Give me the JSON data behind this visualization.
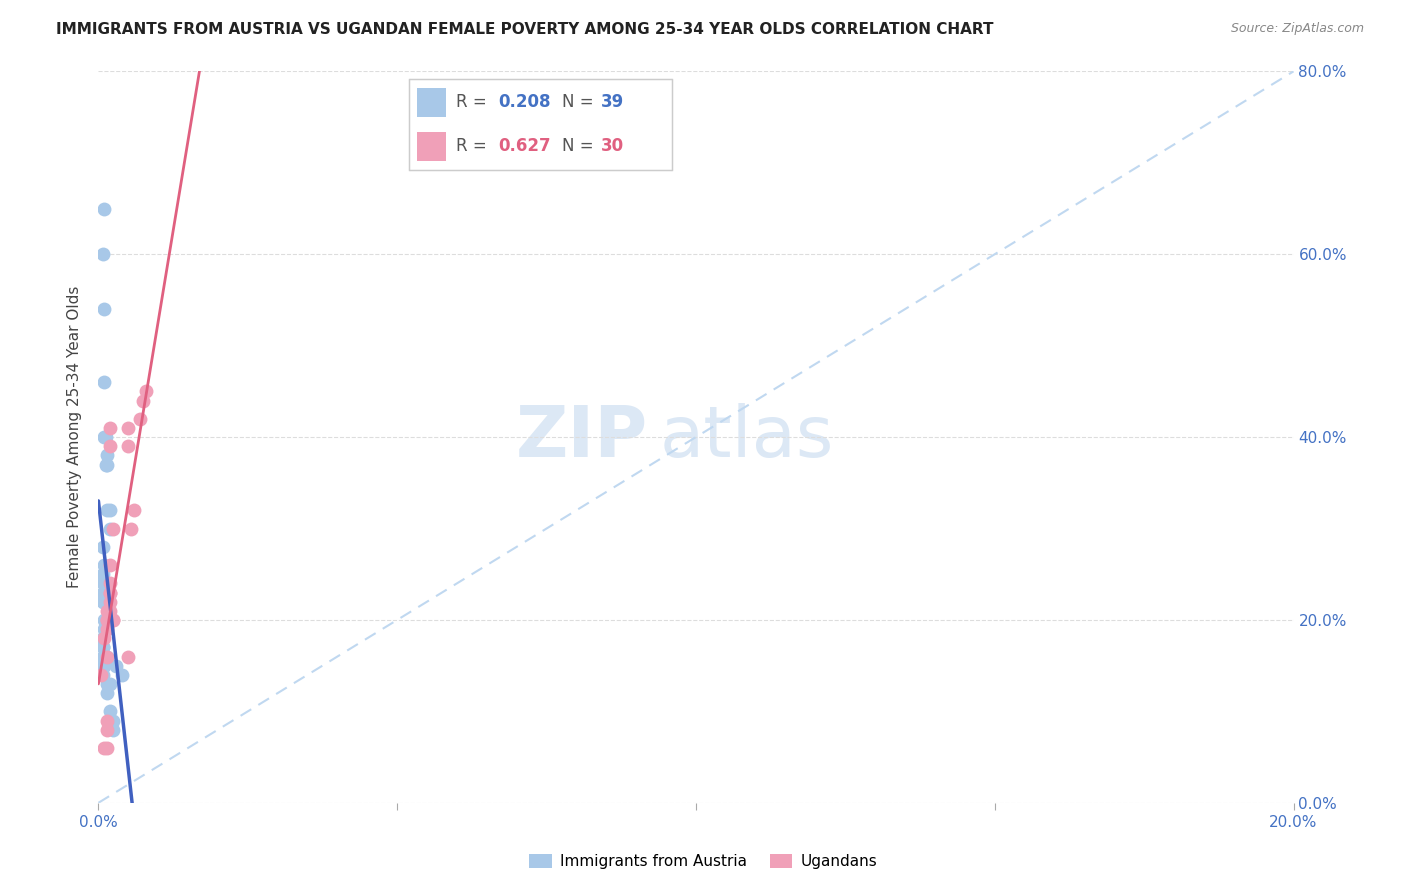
{
  "title": "IMMIGRANTS FROM AUSTRIA VS UGANDAN FEMALE POVERTY AMONG 25-34 YEAR OLDS CORRELATION CHART",
  "source": "Source: ZipAtlas.com",
  "ylabel": "Female Poverty Among 25-34 Year Olds",
  "xlim": [
    0.0,
    0.2
  ],
  "ylim": [
    0.0,
    0.8
  ],
  "xticks": [
    0.0,
    0.05,
    0.1,
    0.15,
    0.2
  ],
  "yticks": [
    0.0,
    0.2,
    0.4,
    0.6,
    0.8
  ],
  "right_ytick_labels": [
    "0.0%",
    "20.0%",
    "40.0%",
    "60.0%",
    "80.0%"
  ],
  "austria_R": 0.208,
  "austria_N": 39,
  "uganda_R": 0.627,
  "uganda_N": 30,
  "austria_color": "#a8c8e8",
  "uganda_color": "#f0a0b8",
  "austria_line_color": "#4060c0",
  "uganda_line_color": "#e06080",
  "diagonal_color": "#c0d8f0",
  "watermark_zip": "ZIP",
  "watermark_atlas": "atlas",
  "austria_x": [
    0.001,
    0.0008,
    0.001,
    0.001,
    0.001,
    0.0012,
    0.0015,
    0.0012,
    0.0015,
    0.002,
    0.0015,
    0.002,
    0.0008,
    0.001,
    0.0008,
    0.0008,
    0.0008,
    0.0008,
    0.001,
    0.0015,
    0.001,
    0.001,
    0.0008,
    0.0008,
    0.0008,
    0.0008,
    0.001,
    0.0015,
    0.001,
    0.0008,
    0.0008,
    0.0015,
    0.002,
    0.0015,
    0.002,
    0.0025,
    0.0025,
    0.003,
    0.004
  ],
  "austria_y": [
    0.65,
    0.6,
    0.54,
    0.46,
    0.4,
    0.4,
    0.38,
    0.37,
    0.37,
    0.32,
    0.32,
    0.3,
    0.28,
    0.26,
    0.25,
    0.24,
    0.23,
    0.22,
    0.22,
    0.22,
    0.2,
    0.19,
    0.18,
    0.17,
    0.17,
    0.16,
    0.16,
    0.16,
    0.15,
    0.15,
    0.14,
    0.13,
    0.13,
    0.12,
    0.1,
    0.09,
    0.08,
    0.15,
    0.14
  ],
  "uganda_x": [
    0.0015,
    0.001,
    0.0015,
    0.0015,
    0.0005,
    0.0015,
    0.001,
    0.0015,
    0.0015,
    0.0015,
    0.0015,
    0.002,
    0.002,
    0.002,
    0.002,
    0.0025,
    0.002,
    0.002,
    0.002,
    0.002,
    0.0025,
    0.0025,
    0.005,
    0.005,
    0.005,
    0.0055,
    0.006,
    0.007,
    0.0075,
    0.008
  ],
  "uganda_y": [
    0.06,
    0.06,
    0.08,
    0.09,
    0.14,
    0.16,
    0.18,
    0.19,
    0.2,
    0.2,
    0.21,
    0.22,
    0.23,
    0.24,
    0.26,
    0.2,
    0.21,
    0.23,
    0.39,
    0.41,
    0.3,
    0.2,
    0.16,
    0.39,
    0.41,
    0.3,
    0.32,
    0.42,
    0.44,
    0.45
  ],
  "austria_line_x": [
    0.0,
    0.006
  ],
  "uganda_line_x": [
    0.0,
    0.2
  ]
}
